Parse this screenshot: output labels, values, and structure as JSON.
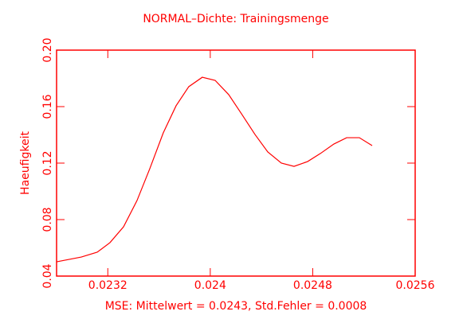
{
  "chart_data": {
    "type": "line",
    "title": "NORMAL–Dichte: Trainingsmenge",
    "xlabel": "MSE: Mittelwert = 0.0243, Std.Fehler = 0.0008",
    "ylabel": "Haeufigkeit",
    "color": "#ff0000",
    "x": [
      0.0228,
      0.022993,
      0.023117,
      0.023217,
      0.023323,
      0.023428,
      0.023528,
      0.023633,
      0.023733,
      0.023832,
      0.023938,
      0.024038,
      0.024144,
      0.024244,
      0.024349,
      0.024449,
      0.024555,
      0.024654,
      0.02476,
      0.02486,
      0.024965,
      0.025065,
      0.025164,
      0.025264
    ],
    "values": [
      0.0501,
      0.0535,
      0.0569,
      0.0637,
      0.0749,
      0.0935,
      0.1161,
      0.1414,
      0.1606,
      0.1741,
      0.1808,
      0.1786,
      0.1685,
      0.1549,
      0.1403,
      0.1279,
      0.12,
      0.1177,
      0.1211,
      0.1268,
      0.1335,
      0.138,
      0.138,
      0.1324
    ],
    "xlim": [
      0.0228,
      0.0256
    ],
    "xticks": [
      0.0232,
      0.024,
      0.0248,
      0.0256
    ],
    "ylim": [
      0.04,
      0.2
    ],
    "yticks": [
      0.04,
      0.08,
      0.12,
      0.16,
      {
        "value": 0.2,
        "label": "0.20"
      }
    ],
    "grid": false
  }
}
